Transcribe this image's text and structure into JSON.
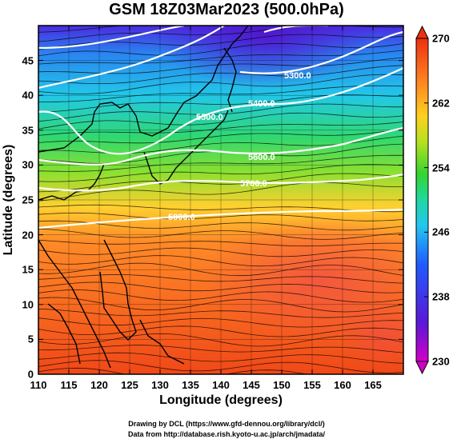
{
  "title": "GSM 18Z03Mar2023 (500.0hPa)",
  "x_axis": {
    "label": "Longitude (degrees)",
    "ticks": [
      "110",
      "115",
      "120",
      "125",
      "130",
      "135",
      "140",
      "145",
      "150",
      "155",
      "160",
      "165"
    ],
    "range": [
      110,
      170
    ]
  },
  "y_axis": {
    "label": "Latitude  (degrees)",
    "ticks": [
      "0",
      "5",
      "10",
      "15",
      "20",
      "25",
      "30",
      "35",
      "40",
      "45"
    ],
    "range": [
      0,
      50
    ]
  },
  "colorbar": {
    "ticks": [
      "230",
      "238",
      "246",
      "254",
      "262",
      "270"
    ],
    "range": [
      230,
      270
    ],
    "colors": [
      "#d400c8",
      "#5a18d8",
      "#1f5bff",
      "#22c6f0",
      "#20d8a0",
      "#33d430",
      "#b8e020",
      "#ffd020",
      "#ff8820",
      "#ee3010"
    ]
  },
  "contours": [
    {
      "label": "5300.0"
    },
    {
      "label": "5400.0"
    },
    {
      "label": "5500.0"
    },
    {
      "label": "5600.0"
    },
    {
      "label": "5700.0"
    },
    {
      "label": "5800.0"
    }
  ],
  "credits": {
    "line1": "Drawing by DCL (https://www.gfd-dennou.org/library/dcl/)",
    "line2": "Data from http://database.rish.kyoto-u.ac.jp/arch/jmadata/"
  }
}
